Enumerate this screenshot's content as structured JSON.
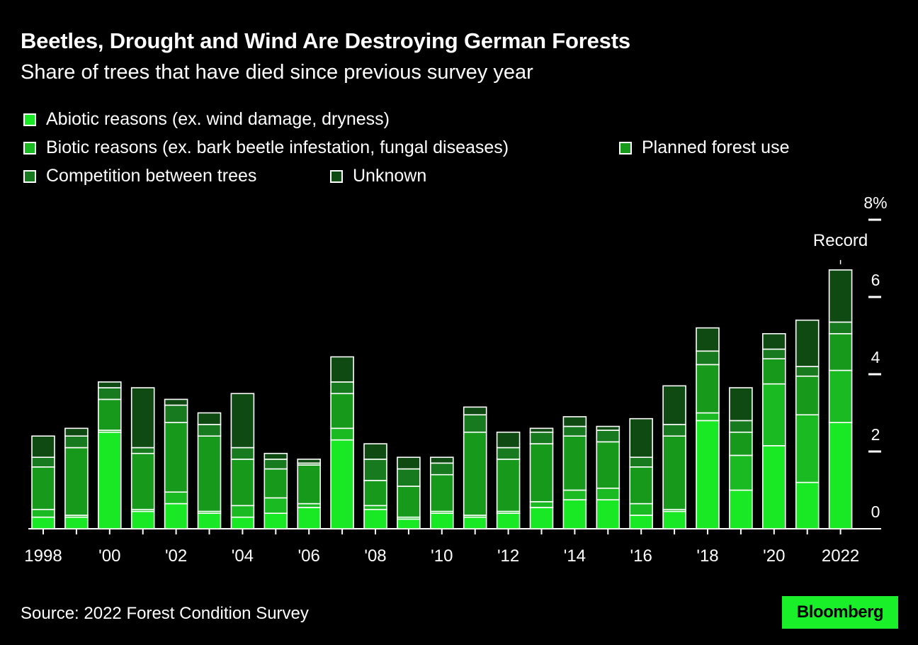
{
  "title": "Beetles, Drought and Wind Are Destroying German Forests",
  "subtitle": "Share of trees that have died since previous survey year",
  "source": "Source: 2022 Forest Condition Survey",
  "logo_text": "Bloomberg",
  "colors": {
    "background": "#000000",
    "abiotic": "#19e825",
    "biotic": "#1aba22",
    "planned": "#179a1c",
    "competition": "#187a1e",
    "unknown": "#0f4a13",
    "stroke": "#ffffff"
  },
  "chart_data": {
    "type": "bar",
    "stacked": true,
    "title": "Beetles, Drought and Wind Are Destroying German Forests",
    "subtitle": "Share of trees that have died since previous survey year",
    "ylabel": "",
    "xlabel": "",
    "ylim": [
      0,
      8
    ],
    "yticks": [
      0,
      2,
      4,
      6,
      8
    ],
    "ytick_labels": [
      "0",
      "2",
      "4",
      "6",
      "8%"
    ],
    "years": [
      1998,
      1999,
      2000,
      2001,
      2002,
      2003,
      2004,
      2005,
      2006,
      2007,
      2008,
      2009,
      2010,
      2011,
      2012,
      2013,
      2014,
      2015,
      2016,
      2017,
      2018,
      2019,
      2020,
      2021,
      2022
    ],
    "x_tick_labels": [
      "1998",
      "",
      "'00",
      "",
      "'02",
      "",
      "'04",
      "",
      "'06",
      "",
      "'08",
      "",
      "'10",
      "",
      "'12",
      "",
      "'14",
      "",
      "'16",
      "",
      "'18",
      "",
      "'20",
      "",
      "2022"
    ],
    "series": [
      {
        "name": "Abiotic reasons (ex. wind damage, dryness)",
        "key": "abiotic",
        "values": [
          0.3,
          0.3,
          2.5,
          0.45,
          0.65,
          0.4,
          0.3,
          0.4,
          0.55,
          2.3,
          0.5,
          0.25,
          0.4,
          0.3,
          0.4,
          0.55,
          0.75,
          0.75,
          0.35,
          0.45,
          2.8,
          1.0,
          2.15,
          1.2,
          2.75
        ]
      },
      {
        "name": "Biotic reasons (ex. bark beetle infestation, fungal diseases)",
        "key": "biotic",
        "values": [
          0.2,
          0.05,
          0.05,
          0.05,
          0.3,
          0.05,
          0.3,
          0.4,
          0.1,
          0.3,
          0.1,
          0.05,
          0.05,
          0.05,
          0.05,
          0.15,
          0.25,
          0.3,
          0.3,
          0.05,
          0.2,
          0.9,
          1.6,
          1.75,
          1.35
        ]
      },
      {
        "name": "Planned forest use",
        "key": "planned",
        "values": [
          1.1,
          1.75,
          0.8,
          1.45,
          1.8,
          1.95,
          1.2,
          0.75,
          1.0,
          0.9,
          0.65,
          0.8,
          0.95,
          2.15,
          1.35,
          1.5,
          1.4,
          1.2,
          0.95,
          1.9,
          1.25,
          0.6,
          0.65,
          1.0,
          0.95
        ]
      },
      {
        "name": "Competition between trees",
        "key": "competition",
        "values": [
          0.25,
          0.3,
          0.3,
          0.15,
          0.45,
          0.3,
          0.3,
          0.25,
          0.05,
          0.3,
          0.55,
          0.45,
          0.3,
          0.45,
          0.3,
          0.3,
          0.25,
          0.3,
          0.25,
          0.3,
          0.35,
          0.3,
          0.25,
          0.25,
          0.3
        ]
      },
      {
        "name": "Unknown",
        "key": "unknown",
        "values": [
          0.55,
          0.2,
          0.15,
          1.55,
          0.15,
          0.3,
          1.4,
          0.15,
          0.1,
          0.65,
          0.4,
          0.3,
          0.15,
          0.2,
          0.4,
          0.1,
          0.25,
          0.1,
          1.0,
          1.0,
          0.6,
          0.85,
          0.4,
          1.2,
          1.35
        ]
      }
    ],
    "annotations": [
      {
        "year": 2022,
        "text": "Record"
      }
    ],
    "legend_position": "top-left"
  }
}
